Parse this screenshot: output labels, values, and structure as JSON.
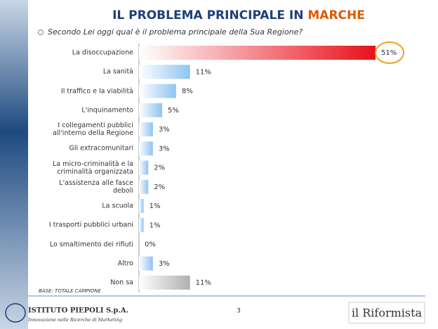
{
  "chart_data": {
    "type": "bar",
    "title": "IL PROBLEMA PRINCIPALE IN",
    "title_region": "MARCHE",
    "subtitle": "Secondo Lei oggi qual è il problema principale della Sua Regione?",
    "categories": [
      "La disoccupazione",
      "La sanità",
      "Il traffico e la viabilità",
      "L'inquinamento",
      "I collegamenti pubblici\nall'interno della Regione",
      "Gli extracomunitari",
      "La micro-criminalità e la\ncriminalità organizzata",
      "L'assistenza alle fasce\ndeboli",
      "La scuola",
      "I trasporti pubblici urbani",
      "Lo smaltimento dei rifiuti",
      "Altro",
      "Non sa"
    ],
    "values": [
      51,
      11,
      8,
      5,
      3,
      3,
      2,
      2,
      1,
      1,
      0,
      3,
      11
    ],
    "value_labels": [
      "51%",
      "11%",
      "8%",
      "5%",
      "3%",
      "3%",
      "2%",
      "2%",
      "1%",
      "1%",
      "0%",
      "3%",
      "11%"
    ],
    "bar_colors": [
      "#e8101a",
      "#8fc3f2",
      "#8fc3f2",
      "#8fc3f2",
      "#8fc3f2",
      "#8fc3f2",
      "#8fc3f2",
      "#8fc3f2",
      "#8fc3f2",
      "#8fc3f2",
      "#8fc3f2",
      "#8fc3f2",
      "#b0b0b0"
    ],
    "note": "BASE: TOTALE CAMPIONE"
  },
  "footer": {
    "page": "3",
    "company": "ISTITUTO PIEPOLI S.p.A.",
    "tagline": "Innovazione nelle Ricerche di Marketing",
    "partner": "il Riformista"
  }
}
